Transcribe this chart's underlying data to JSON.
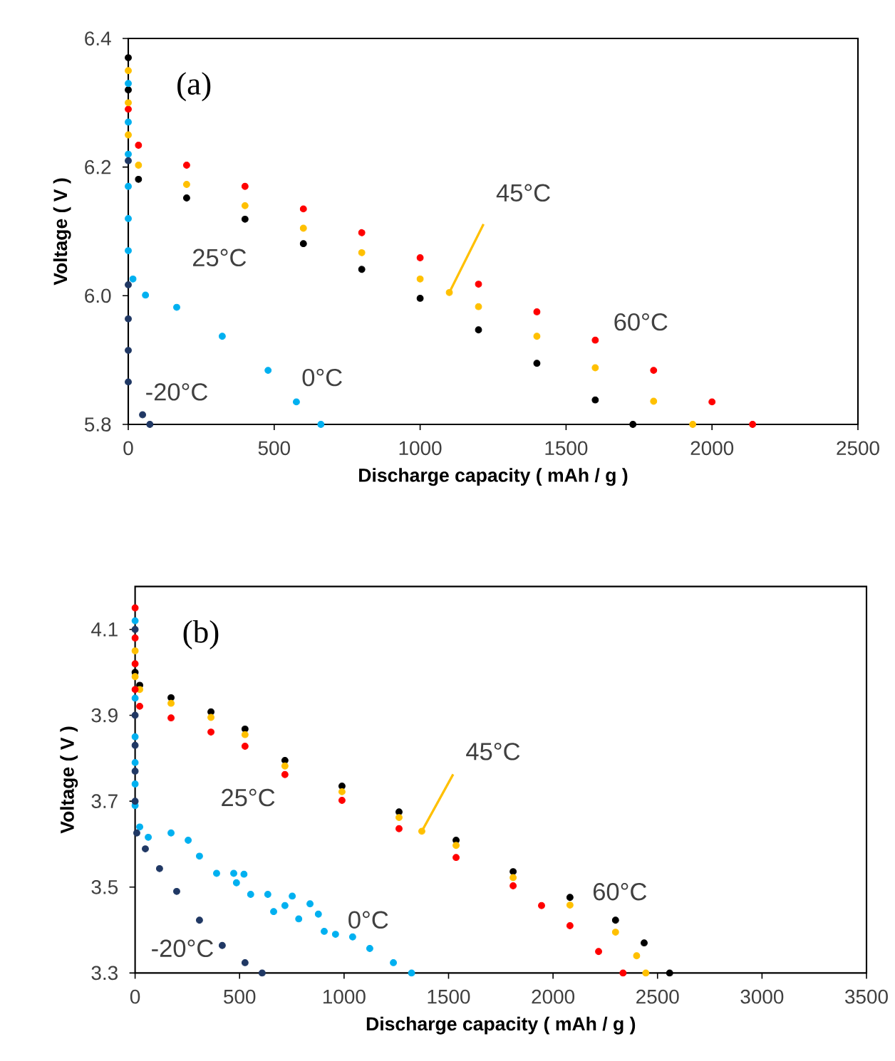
{
  "chart_data": [
    {
      "type": "scatter",
      "marker": "circle",
      "xlabel": "Discharge capacity ( mAh / g )",
      "ylabel": "Voltage ( V )",
      "annotations": [
        "(a)"
      ],
      "xlim": [
        0,
        2500
      ],
      "xticks": [
        0,
        500,
        1000,
        1500,
        2000,
        2500
      ],
      "ylim": [
        5.8,
        6.4
      ],
      "yticks": [
        5.8,
        {
          "value": 6.0,
          "label": "6.0"
        },
        6.2,
        6.4
      ],
      "series": [
        {
          "name": "60°C",
          "color": "#ff0000",
          "x": [
            0,
            35,
            200,
            400,
            600,
            800,
            1000,
            1200,
            1400,
            1600,
            1800,
            2000,
            2139
          ],
          "values": [
            6.29,
            6.234,
            6.203,
            6.17,
            6.135,
            6.098,
            6.059,
            6.018,
            5.975,
            5.931,
            5.884,
            5.835,
            5.8
          ]
        },
        {
          "name": "45°C",
          "color": "#ffc000",
          "x": [
            0,
            0,
            0,
            35,
            200,
            400,
            600,
            800,
            1000,
            1100,
            1200,
            1400,
            1600,
            1800,
            1934
          ],
          "values": [
            6.35,
            6.3,
            6.25,
            6.203,
            6.173,
            6.14,
            6.105,
            6.067,
            6.026,
            6.005,
            5.983,
            5.937,
            5.888,
            5.836,
            5.8
          ]
        },
        {
          "name": "25°C",
          "color": "#000000",
          "x": [
            0,
            0,
            35,
            200,
            400,
            600,
            800,
            1000,
            1200,
            1400,
            1600,
            1729
          ],
          "values": [
            6.37,
            6.32,
            6.181,
            6.152,
            6.119,
            6.081,
            6.041,
            5.996,
            5.947,
            5.895,
            5.838,
            5.8
          ]
        },
        {
          "name": "0°C",
          "color": "#00b0f0",
          "x": [
            0,
            0,
            0,
            0,
            0,
            0,
            16,
            59,
            166,
            322,
            479,
            576,
            660
          ],
          "values": [
            6.33,
            6.27,
            6.22,
            6.17,
            6.12,
            6.07,
            6.026,
            6.001,
            5.982,
            5.937,
            5.884,
            5.835,
            5.8
          ]
        },
        {
          "name": "-20°C",
          "color": "#203864",
          "x": [
            0,
            0,
            0,
            0,
            0,
            49,
            74
          ],
          "values": [
            6.21,
            6.017,
            5.964,
            5.915,
            5.866,
            5.815,
            5.8
          ]
        }
      ]
    },
    {
      "type": "scatter",
      "marker": "circle",
      "xlabel": "Discharge capacity ( mAh / g )",
      "ylabel": "Voltage ( V )",
      "annotations": [
        "(b)"
      ],
      "xlim": [
        0,
        3500
      ],
      "xticks": [
        0,
        500,
        1000,
        1500,
        2000,
        2500,
        3000,
        3500
      ],
      "ylim": [
        3.3,
        4.2
      ],
      "yticks": [
        3.3,
        3.5,
        3.7,
        3.9,
        4.1
      ],
      "series": [
        {
          "name": "60°C",
          "color": "#000000",
          "x": [
            0,
            22,
            172,
            363,
            526,
            717,
            990,
            1263,
            1536,
            1809,
            2081,
            2299,
            2436,
            2558
          ],
          "values": [
            4.0,
            3.97,
            3.941,
            3.908,
            3.868,
            3.795,
            3.735,
            3.675,
            3.609,
            3.536,
            3.476,
            3.423,
            3.37,
            3.3
          ]
        },
        {
          "name": "45°C",
          "color": "#ffc000",
          "x": [
            0,
            0,
            22,
            172,
            363,
            526,
            717,
            990,
            1263,
            1372,
            1536,
            1809,
            2081,
            2299,
            2400,
            2444
          ],
          "values": [
            4.05,
            3.99,
            3.96,
            3.928,
            3.895,
            3.855,
            3.782,
            3.722,
            3.662,
            3.63,
            3.597,
            3.522,
            3.458,
            3.395,
            3.34,
            3.3
          ]
        },
        {
          "name": "25°C",
          "color": "#ff0000",
          "x": [
            0,
            0,
            0,
            0,
            22,
            172,
            363,
            526,
            717,
            990,
            1263,
            1536,
            1809,
            1945,
            2081,
            2218,
            2335
          ],
          "values": [
            4.15,
            4.08,
            4.02,
            3.96,
            3.921,
            3.894,
            3.861,
            3.828,
            3.762,
            3.702,
            3.636,
            3.569,
            3.503,
            3.457,
            3.41,
            3.35,
            3.3
          ]
        },
        {
          "name": "0°C",
          "color": "#00b0f0",
          "x": [
            0,
            0,
            0,
            0,
            0,
            0,
            22,
            63,
            172,
            254,
            308,
            390,
            472,
            521,
            485,
            553,
            635,
            663,
            717,
            752,
            783,
            837,
            877,
            905,
            959,
            1041,
            1123,
            1236,
            1323
          ],
          "values": [
            4.12,
            3.94,
            3.85,
            3.79,
            3.74,
            3.69,
            3.64,
            3.616,
            3.626,
            3.609,
            3.572,
            3.532,
            3.532,
            3.53,
            3.51,
            3.483,
            3.483,
            3.443,
            3.457,
            3.479,
            3.426,
            3.461,
            3.437,
            3.397,
            3.39,
            3.384,
            3.357,
            3.324,
            3.3
          ]
        },
        {
          "name": "-20°C",
          "color": "#203864",
          "x": [
            0,
            0,
            0,
            0,
            0,
            8,
            49,
            117,
            199,
            308,
            417,
            526,
            608
          ],
          "values": [
            4.1,
            3.9,
            3.83,
            3.77,
            3.7,
            3.626,
            3.589,
            3.543,
            3.49,
            3.423,
            3.364,
            3.324,
            3.3
          ]
        }
      ]
    }
  ]
}
